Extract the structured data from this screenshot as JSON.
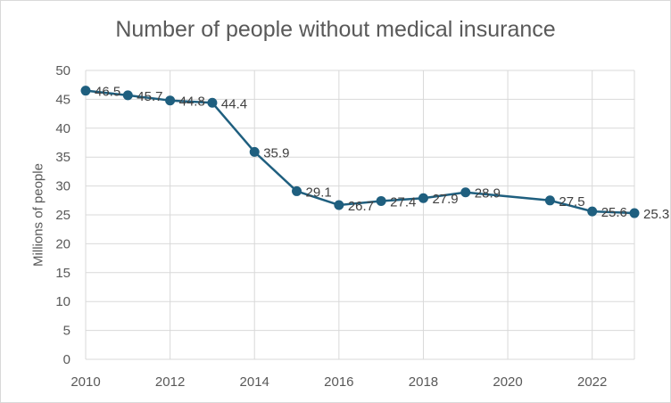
{
  "chart_data": {
    "type": "line",
    "title": "Number of people without medical insurance",
    "xlabel": "",
    "ylabel": "Millions of people",
    "xlim": [
      2010,
      2023
    ],
    "ylim": [
      0,
      50
    ],
    "x_ticks": [
      2010,
      2012,
      2014,
      2016,
      2018,
      2020,
      2022
    ],
    "y_ticks": [
      0,
      5,
      10,
      15,
      20,
      25,
      30,
      35,
      40,
      45,
      50
    ],
    "grid": true,
    "legend": "none",
    "series": [
      {
        "color": "#1f5f7f",
        "points": [
          {
            "x": 2010,
            "y": 46.5
          },
          {
            "x": 2011,
            "y": 45.7
          },
          {
            "x": 2012,
            "y": 44.8
          },
          {
            "x": 2013,
            "y": 44.4
          },
          {
            "x": 2014,
            "y": 35.9
          },
          {
            "x": 2015,
            "y": 29.1
          },
          {
            "x": 2016,
            "y": 26.7
          },
          {
            "x": 2017,
            "y": 27.4
          },
          {
            "x": 2018,
            "y": 27.9
          },
          {
            "x": 2019,
            "y": 28.9
          },
          {
            "x": 2021,
            "y": 27.5
          },
          {
            "x": 2022,
            "y": 25.6
          },
          {
            "x": 2023,
            "y": 25.3
          }
        ],
        "labels": [
          "46.5",
          "45.7",
          "44.8",
          "44.4",
          "35.9",
          "29.1",
          "26.7",
          "27.4",
          "27.9",
          "28.9",
          "27.5",
          "25.6",
          "25.3"
        ]
      }
    ]
  }
}
